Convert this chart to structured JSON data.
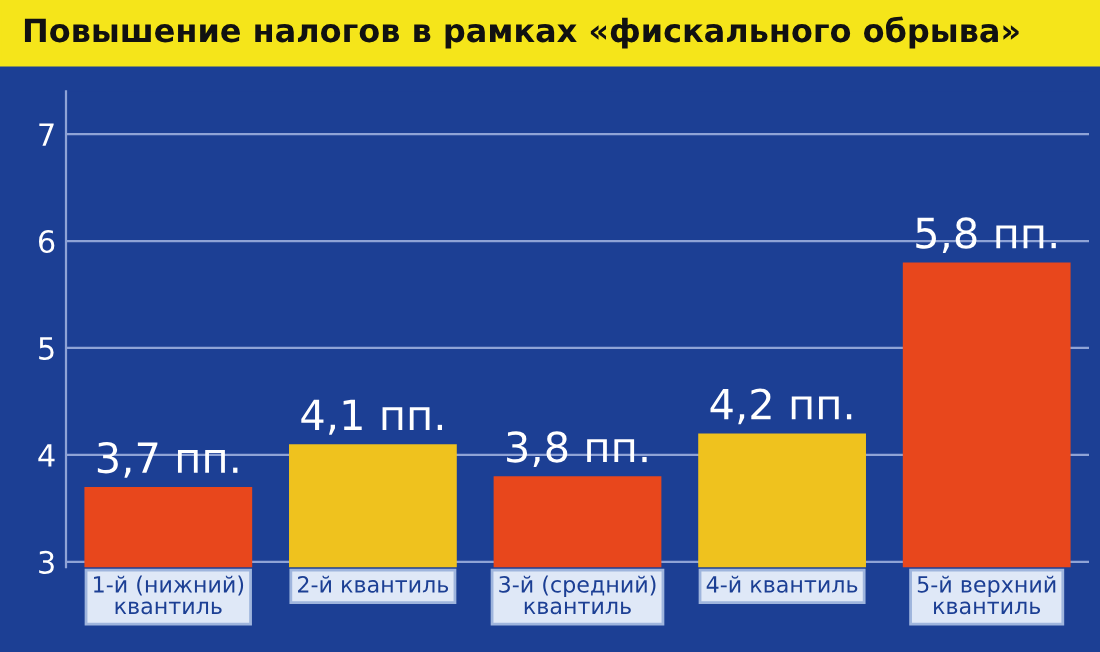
{
  "chart_data": {
    "type": "bar",
    "title": "Повышение налогов в рамках «фискального обрыва»",
    "categories": [
      "1-й (нижний)\nквантиль",
      "2-й квантиль",
      "3-й (средний)\nквантиль",
      "4-й квантиль",
      "5-й верхний\nквантиль"
    ],
    "values": [
      3.7,
      4.1,
      3.8,
      4.2,
      5.8
    ],
    "colors": [
      "#e8471c",
      "#efc21e",
      "#e8471c",
      "#efc21e",
      "#e8471c"
    ],
    "value_labels": [
      "3,7 пп.",
      "4,1 пп.",
      "3,8 пп.",
      "4,2 пп.",
      "5,8 пп."
    ],
    "ylim": [
      2.95,
      7.4
    ],
    "yticks": [
      3,
      4,
      5,
      6,
      7
    ],
    "grid": "y"
  }
}
